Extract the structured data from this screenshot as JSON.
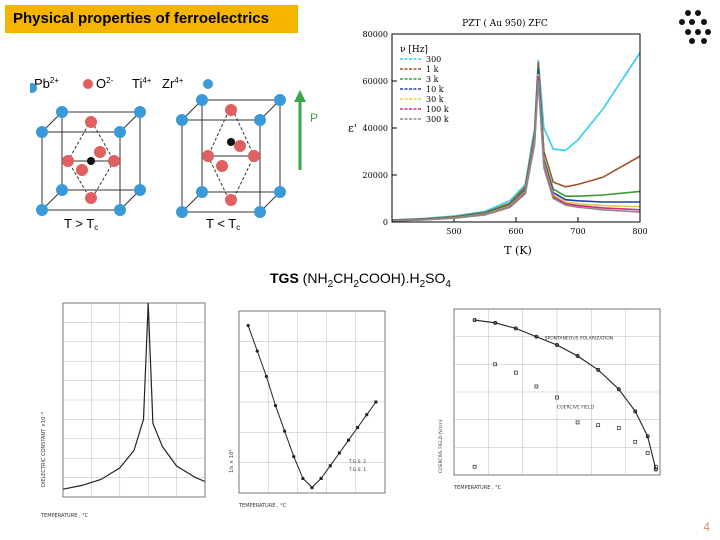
{
  "slide": {
    "title": "Physical properties of ferroelectrics",
    "page_number": "4",
    "accent_color": "#f5b400"
  },
  "crystal": {
    "legend": {
      "pb": "Pb",
      "pb_charge": "2+",
      "o": "O",
      "o_charge": "2-",
      "ti": "Ti",
      "ti_charge": "4+",
      "zr": "Zr",
      "zr_charge": "4+"
    },
    "label_hot": "T > T",
    "label_hot_sub": "c",
    "label_cold": "T < T",
    "label_cold_sub": "c",
    "arrow_label": "P",
    "arrow_color": "#3aa648"
  },
  "pzt_chart": {
    "title": "PZT ( Au 950) ZFC",
    "ylabel": "ε'",
    "xlabel": "T (K)",
    "legend_title": "ν [Hz]",
    "legend": [
      "300",
      "1 k",
      "3 k",
      "10 k",
      "30 k",
      "100 k",
      "300 k"
    ],
    "colors": [
      "#2fd0e8",
      "#a0522d",
      "#3a9a3a",
      "#1f3fb0",
      "#e0d040",
      "#d6288a",
      "#8a8a8a"
    ]
  },
  "tgs": {
    "label_bold": "TGS",
    "formula_a": " (NH",
    "formula_sub1": "2",
    "formula_b": "CH",
    "formula_sub2": "2",
    "formula_c": "COOH).H",
    "formula_sub3": "2",
    "formula_d": "SO",
    "formula_sub4": "4"
  },
  "chart_data": [
    {
      "type": "line",
      "title": "PZT ( Au 950) ZFC",
      "xlabel": "T (K)",
      "ylabel": "ε'",
      "xlim": [
        400,
        800
      ],
      "ylim": [
        0,
        80000
      ],
      "xticks": [
        500,
        600,
        700,
        800
      ],
      "yticks": [
        0,
        20000,
        40000,
        60000,
        80000
      ],
      "legend_title": "ν [Hz]",
      "legend_position": "top-left",
      "series": [
        {
          "name": "300",
          "x": [
            400,
            450,
            500,
            550,
            590,
            615,
            630,
            636,
            645,
            660,
            680,
            700,
            740,
            800
          ],
          "y": [
            900,
            1500,
            2500,
            4500,
            9000,
            16000,
            40000,
            69000,
            40000,
            31000,
            30500,
            35000,
            48000,
            72000
          ]
        },
        {
          "name": "1 k",
          "x": [
            400,
            450,
            500,
            550,
            590,
            615,
            630,
            636,
            645,
            660,
            680,
            700,
            740,
            800
          ],
          "y": [
            800,
            1300,
            2200,
            4000,
            8000,
            15000,
            38000,
            68000,
            30000,
            17000,
            15000,
            16000,
            19000,
            28000
          ]
        },
        {
          "name": "3 k",
          "x": [
            400,
            450,
            500,
            550,
            590,
            615,
            630,
            636,
            645,
            660,
            680,
            700,
            740,
            800
          ],
          "y": [
            700,
            1200,
            2000,
            3700,
            7500,
            14000,
            37000,
            66000,
            27000,
            14000,
            11000,
            11000,
            11500,
            13000
          ]
        },
        {
          "name": "10 k",
          "x": [
            400,
            450,
            500,
            550,
            590,
            615,
            630,
            636,
            645,
            660,
            680,
            700,
            740,
            800
          ],
          "y": [
            600,
            1100,
            1900,
            3500,
            7000,
            13500,
            36000,
            65000,
            26000,
            12500,
            9500,
            9000,
            8500,
            8500
          ]
        },
        {
          "name": "30 k",
          "x": [
            400,
            450,
            500,
            550,
            590,
            615,
            630,
            636,
            645,
            660,
            680,
            700,
            740,
            800
          ],
          "y": [
            550,
            1000,
            1800,
            3300,
            6800,
            13000,
            35000,
            63000,
            25000,
            11500,
            8500,
            7800,
            7000,
            6500
          ]
        },
        {
          "name": "100 k",
          "x": [
            400,
            450,
            500,
            550,
            590,
            615,
            630,
            636,
            645,
            660,
            680,
            700,
            740,
            800
          ],
          "y": [
            500,
            950,
            1700,
            3100,
            6500,
            12500,
            34000,
            62000,
            24000,
            10800,
            7800,
            7000,
            6000,
            5200
          ]
        },
        {
          "name": "300 k",
          "x": [
            400,
            450,
            500,
            550,
            590,
            615,
            630,
            636,
            645,
            660,
            680,
            700,
            740,
            800
          ],
          "y": [
            450,
            900,
            1600,
            3000,
            6200,
            12000,
            33000,
            60000,
            23000,
            10000,
            7200,
            6300,
            5200,
            4200
          ]
        }
      ]
    },
    {
      "type": "line",
      "title": "",
      "xlabel": "TEMPERATURE , °C",
      "ylabel": "DIELECTRIC CONSTANT ×10⁻³",
      "xlim": [
        40,
        55
      ],
      "ylim": [
        0,
        10
      ],
      "x": [
        40,
        42,
        44,
        46,
        47.5,
        48.5,
        49,
        49.5,
        50.5,
        52,
        54,
        55
      ],
      "y": [
        0.4,
        0.6,
        0.9,
        1.5,
        2.4,
        4.0,
        10,
        3.8,
        2.6,
        1.6,
        1.0,
        0.8
      ]
    },
    {
      "type": "scatter",
      "title": "",
      "xlabel": "TEMPERATURE , °C",
      "ylabel": "1/ε × 10⁴",
      "xlim": [
        40,
        56
      ],
      "ylim": [
        0,
        5
      ],
      "legend": [
        "T.G.S. 2",
        "T.G.S. 1"
      ],
      "series": [
        {
          "name": "T.G.S. 2",
          "x": [
            41,
            42,
            43,
            44,
            45,
            46,
            47,
            48
          ],
          "y": [
            4.6,
            3.9,
            3.2,
            2.4,
            1.7,
            1.0,
            0.4,
            0.15
          ]
        },
        {
          "name": "T.G.S. 1",
          "x": [
            48,
            49,
            50,
            51,
            52,
            53,
            54,
            55
          ],
          "y": [
            0.15,
            0.4,
            0.75,
            1.1,
            1.45,
            1.8,
            2.15,
            2.5
          ]
        }
      ]
    },
    {
      "type": "scatter",
      "title": "",
      "xlabel": "TEMPERATURE , °C",
      "ylabel": "COERCIVE FIELD (V/cm)",
      "xlim": [
        0,
        50
      ],
      "ylim": [
        0,
        3
      ],
      "annotations": [
        "SPONTANEOUS POLARIZATION",
        "COERCIVE FIELD"
      ],
      "series": [
        {
          "name": "SPONTANEOUS POLARIZATION",
          "x": [
            5,
            10,
            15,
            20,
            25,
            30,
            35,
            40,
            44,
            47,
            49
          ],
          "y": [
            2.8,
            2.75,
            2.65,
            2.5,
            2.35,
            2.15,
            1.9,
            1.55,
            1.15,
            0.7,
            0.1
          ]
        },
        {
          "name": "COERCIVE FIELD",
          "x": [
            5,
            10,
            15,
            20,
            25,
            30,
            35,
            40,
            44,
            47,
            49
          ],
          "y": [
            0.15,
            2.0,
            1.85,
            1.6,
            1.4,
            0.95,
            0.9,
            0.85,
            0.6,
            0.4,
            0.15
          ]
        }
      ]
    }
  ]
}
